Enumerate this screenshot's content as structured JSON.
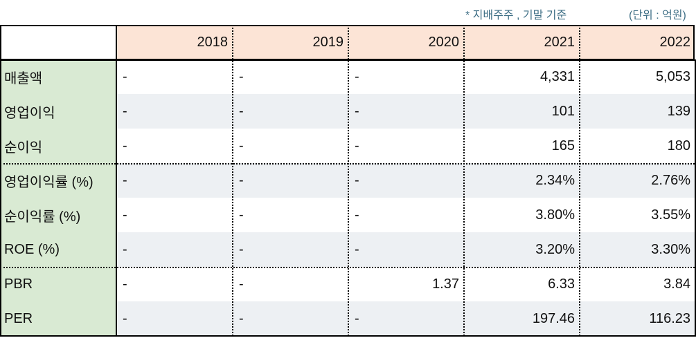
{
  "note": "* 지배주주 , 기말 기준",
  "unit": "(단위 : 억원)",
  "table": {
    "columns": [
      "2018",
      "2019",
      "2020",
      "2021",
      "2022"
    ],
    "rows": [
      {
        "label": "매출액",
        "cells": [
          "-",
          "-",
          "-",
          "4,331",
          "5,053"
        ]
      },
      {
        "label": "영업이익",
        "cells": [
          "-",
          "-",
          "-",
          "101",
          "139"
        ]
      },
      {
        "label": "순이익",
        "cells": [
          "-",
          "-",
          "-",
          "165",
          "180"
        ]
      },
      {
        "label": "영업이익률 (%)",
        "cells": [
          "-",
          "-",
          "-",
          "2.34%",
          "2.76%"
        ]
      },
      {
        "label": "순이익률 (%)",
        "cells": [
          "-",
          "-",
          "-",
          "3.80%",
          "3.55%"
        ]
      },
      {
        "label": "ROE (%)",
        "cells": [
          "-",
          "-",
          "-",
          "3.20%",
          "3.30%"
        ]
      },
      {
        "label": "PBR",
        "cells": [
          "-",
          "-",
          "1.37",
          "6.33",
          "3.84"
        ]
      },
      {
        "label": "PER",
        "cells": [
          "-",
          "-",
          "-",
          "197.46",
          "116.23"
        ]
      }
    ]
  }
}
